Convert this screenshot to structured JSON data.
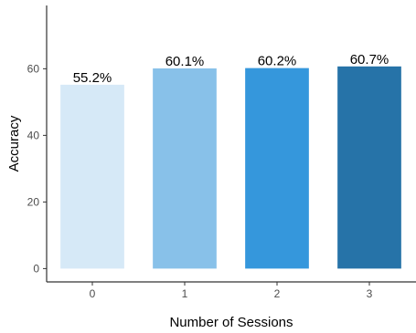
{
  "chart_data": {
    "type": "bar",
    "categories": [
      "0",
      "1",
      "2",
      "3"
    ],
    "values": [
      55.2,
      60.1,
      60.2,
      60.7
    ],
    "data_labels": [
      "55.2%",
      "60.1%",
      "60.2%",
      "60.7%"
    ],
    "bar_colors": [
      "#d6e9f7",
      "#88c1e9",
      "#3597dc",
      "#2673a8"
    ],
    "title": "",
    "xlabel": "Number of Sessions",
    "ylabel": "Accuracy",
    "ylim": [
      -4,
      79
    ],
    "yticks": [
      0,
      20,
      40,
      60
    ],
    "grid": false,
    "legend": "none"
  },
  "colors": {
    "axis": "#333333",
    "tick_text": "#4d4d4d",
    "background": "#ffffff"
  }
}
